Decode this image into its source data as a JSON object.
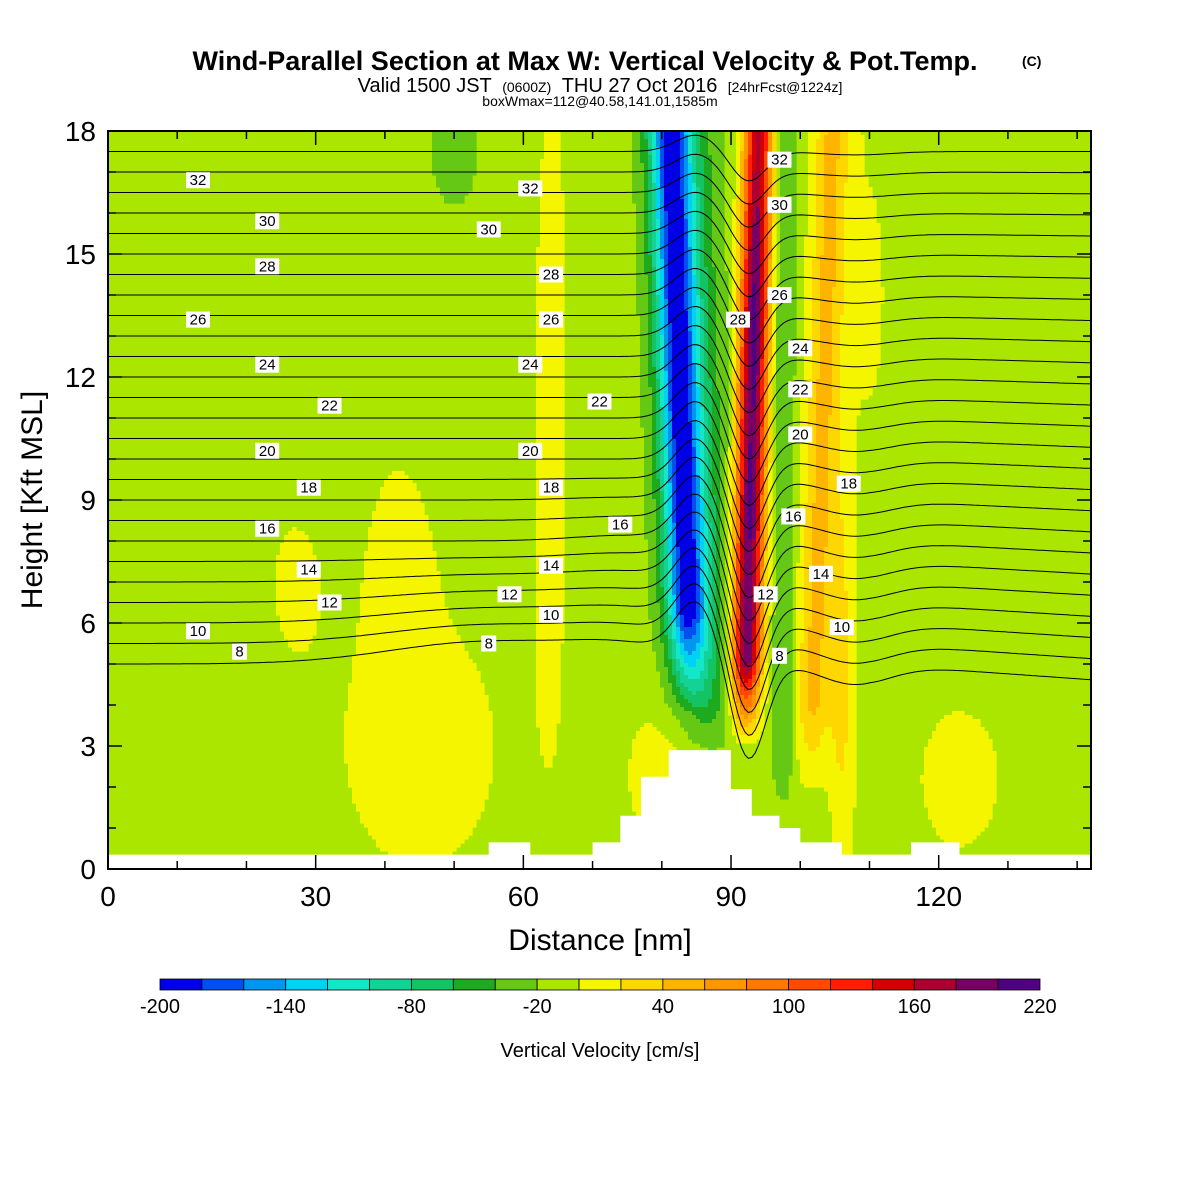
{
  "chart_data": {
    "type": "heatmap",
    "title": "Wind-Parallel Section at Max W: Vertical Velocity & Pot.Temp.",
    "title_mark": "(C)",
    "subtitle": {
      "prefix": "Valid 1500 JST",
      "utc": "(0600Z)",
      "date": "THU 27 Oct 2016",
      "forecast": "[24hrFcst@1224z]"
    },
    "subtitle2": "boxWmax=112@40.58,141.01,1585m",
    "xlabel": "Distance [nm]",
    "ylabel": "Height [Kft MSL]",
    "xlim": [
      0,
      142
    ],
    "ylim": [
      0,
      18
    ],
    "x_ticks": [
      0,
      30,
      60,
      90,
      120
    ],
    "y_ticks": [
      0,
      3,
      6,
      9,
      12,
      15,
      18
    ],
    "colorbar": {
      "label": "Vertical Velocity [cm/s]",
      "levels": [
        -200,
        -180,
        -160,
        -140,
        -120,
        -100,
        -80,
        -60,
        -40,
        -20,
        0,
        20,
        40,
        60,
        80,
        100,
        120,
        140,
        160,
        180,
        200,
        220
      ],
      "tick_labels": [
        "-200",
        "-140",
        "-80",
        "-20",
        "40",
        "100",
        "160",
        "220"
      ],
      "colors": [
        "#0000e6",
        "#0050f0",
        "#0096f0",
        "#00d2f5",
        "#14e6c8",
        "#14d296",
        "#14c364",
        "#1eaa1e",
        "#64c814",
        "#aae600",
        "#f5f500",
        "#ffd700",
        "#ffb400",
        "#ff9600",
        "#ff7800",
        "#ff4b00",
        "#ff1e00",
        "#d20000",
        "#aa0032",
        "#780064",
        "#500082"
      ]
    },
    "vertical_velocity_cm_s": {
      "x": [
        0,
        10,
        20,
        30,
        40,
        50,
        55,
        60,
        63,
        66,
        70,
        75,
        78,
        80,
        82,
        84,
        86,
        88,
        90,
        92,
        94,
        96,
        98,
        100,
        103,
        106,
        110,
        115,
        120,
        130,
        142
      ],
      "y": [
        0,
        1,
        2,
        3,
        4,
        5,
        6,
        7,
        8,
        9,
        10,
        11,
        12,
        13,
        14,
        15,
        16,
        17,
        18
      ],
      "background": -10
    },
    "potential_temperature": {
      "contour_levels": [
        8,
        9,
        10,
        11,
        12,
        13,
        14,
        15,
        16,
        17,
        18,
        19,
        20,
        21,
        22,
        23,
        24,
        25,
        26,
        27,
        28,
        29,
        30,
        31,
        32,
        33
      ],
      "labels": [
        {
          "text": "32",
          "x": 13,
          "y": 16.8
        },
        {
          "text": "30",
          "x": 23,
          "y": 15.8
        },
        {
          "text": "28",
          "x": 23,
          "y": 14.7
        },
        {
          "text": "26",
          "x": 13,
          "y": 13.4
        },
        {
          "text": "24",
          "x": 23,
          "y": 12.3
        },
        {
          "text": "22",
          "x": 32,
          "y": 11.3
        },
        {
          "text": "20",
          "x": 23,
          "y": 10.2
        },
        {
          "text": "18",
          "x": 29,
          "y": 9.3
        },
        {
          "text": "16",
          "x": 23,
          "y": 8.3
        },
        {
          "text": "14",
          "x": 29,
          "y": 7.3
        },
        {
          "text": "12",
          "x": 32,
          "y": 6.5
        },
        {
          "text": "10",
          "x": 13,
          "y": 5.8
        },
        {
          "text": "8",
          "x": 19,
          "y": 5.3
        },
        {
          "text": "32",
          "x": 61,
          "y": 16.6
        },
        {
          "text": "30",
          "x": 55,
          "y": 15.6
        },
        {
          "text": "28",
          "x": 64,
          "y": 14.5
        },
        {
          "text": "26",
          "x": 64,
          "y": 13.4
        },
        {
          "text": "24",
          "x": 61,
          "y": 12.3
        },
        {
          "text": "22",
          "x": 71,
          "y": 11.4
        },
        {
          "text": "20",
          "x": 61,
          "y": 10.2
        },
        {
          "text": "18",
          "x": 64,
          "y": 9.3
        },
        {
          "text": "16",
          "x": 74,
          "y": 8.4
        },
        {
          "text": "14",
          "x": 64,
          "y": 7.4
        },
        {
          "text": "12",
          "x": 58,
          "y": 6.7
        },
        {
          "text": "10",
          "x": 64,
          "y": 6.2
        },
        {
          "text": "8",
          "x": 55,
          "y": 5.5
        },
        {
          "text": "32",
          "x": 97,
          "y": 17.3
        },
        {
          "text": "30",
          "x": 97,
          "y": 16.2
        },
        {
          "text": "28",
          "x": 91,
          "y": 13.4
        },
        {
          "text": "26",
          "x": 97,
          "y": 14.0
        },
        {
          "text": "24",
          "x": 100,
          "y": 12.7
        },
        {
          "text": "22",
          "x": 100,
          "y": 11.7
        },
        {
          "text": "20",
          "x": 100,
          "y": 10.6
        },
        {
          "text": "18",
          "x": 107,
          "y": 9.4
        },
        {
          "text": "16",
          "x": 99,
          "y": 8.6
        },
        {
          "text": "14",
          "x": 103,
          "y": 7.2
        },
        {
          "text": "12",
          "x": 95,
          "y": 6.7
        },
        {
          "text": "10",
          "x": 106,
          "y": 5.9
        },
        {
          "text": "8",
          "x": 97,
          "y": 5.2
        }
      ]
    },
    "terrain_kft": {
      "x": [
        0,
        55,
        55,
        61,
        61,
        65,
        65,
        70,
        70,
        74,
        74,
        77,
        77,
        81,
        81,
        90,
        90,
        93,
        93,
        97,
        97,
        100,
        100,
        106,
        106,
        116,
        116,
        123,
        123,
        142
      ],
      "y": [
        0.35,
        0.35,
        0.65,
        0.65,
        0.35,
        0.35,
        0.35,
        0.35,
        0.65,
        0.65,
        1.3,
        1.3,
        2.25,
        2.25,
        2.9,
        2.9,
        1.95,
        1.95,
        1.3,
        1.3,
        1.0,
        1.0,
        0.65,
        0.65,
        0.35,
        0.35,
        0.65,
        0.65,
        0.35,
        0.35
      ]
    }
  }
}
